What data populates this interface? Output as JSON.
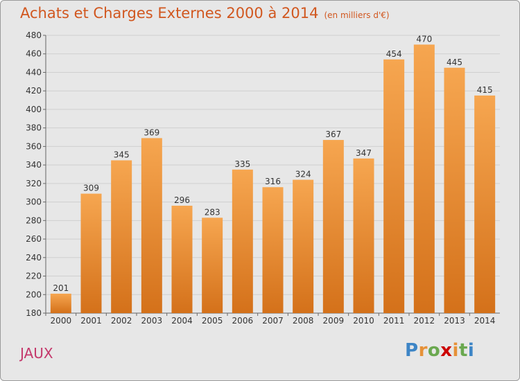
{
  "title": "Achats et Charges Externes 2000 à 2014",
  "unit_note": "(en milliers d'€)",
  "commune": "JAUX",
  "logo": {
    "letters": [
      "P",
      "r",
      "o",
      "x",
      "i",
      "t",
      "i"
    ],
    "colors": [
      "#3d85c6",
      "#e69138",
      "#6aa84f",
      "#cc0000",
      "#e69138",
      "#6aa84f",
      "#3d85c6"
    ]
  },
  "colors": {
    "bar_top": "#f6a650",
    "bar_bottom": "#d4711a",
    "title": "#d1571f",
    "commune": "#c4386b",
    "background": "#e7e7e7"
  },
  "chart_data": {
    "type": "bar",
    "title": "Achats et Charges Externes 2000 à 2014",
    "subtitle": "(en milliers d'€)",
    "xlabel": "",
    "ylabel": "",
    "categories": [
      "2000",
      "2001",
      "2002",
      "2003",
      "2004",
      "2005",
      "2006",
      "2007",
      "2008",
      "2009",
      "2010",
      "2011",
      "2012",
      "2013",
      "2014"
    ],
    "values": [
      201,
      309,
      345,
      369,
      296,
      283,
      335,
      316,
      324,
      367,
      347,
      454,
      470,
      445,
      415
    ],
    "ylim": [
      180,
      480
    ],
    "yticks": [
      180,
      200,
      220,
      240,
      260,
      280,
      300,
      320,
      340,
      360,
      380,
      400,
      420,
      440,
      460,
      480
    ],
    "grid": true,
    "data_labels": true
  }
}
